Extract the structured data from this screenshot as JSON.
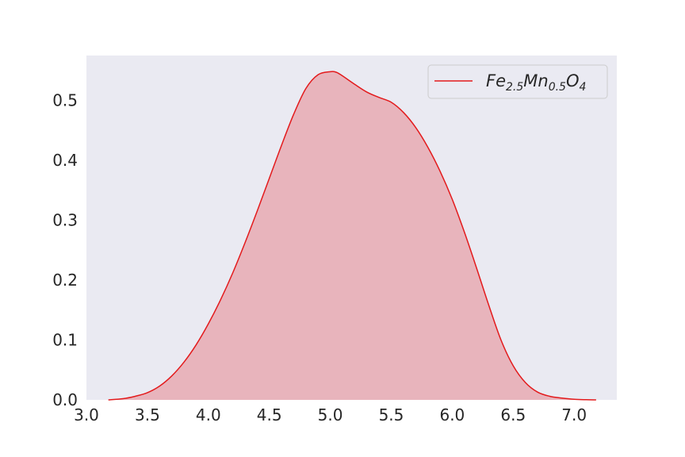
{
  "chart_data": {
    "type": "area",
    "subtype": "kde",
    "title": "",
    "xlabel": "",
    "ylabel": "",
    "xlim": [
      3.0,
      7.35
    ],
    "ylim": [
      0.0,
      0.575
    ],
    "xticks": [
      3.0,
      3.5,
      4.0,
      4.5,
      5.0,
      5.5,
      6.0,
      6.5,
      7.0
    ],
    "xtick_labels": [
      "3.0",
      "3.5",
      "4.0",
      "4.5",
      "5.0",
      "5.5",
      "6.0",
      "6.5",
      "7.0"
    ],
    "yticks": [
      0.0,
      0.1,
      0.2,
      0.3,
      0.4,
      0.5
    ],
    "ytick_labels": [
      "0.0",
      "0.1",
      "0.2",
      "0.3",
      "0.4",
      "0.5"
    ],
    "grid": false,
    "legend_position": "top-right",
    "background_color": "#eaeaf2",
    "series": [
      {
        "name_parts": [
          {
            "text": "Fe",
            "sub": false
          },
          {
            "text": "2.5",
            "sub": true
          },
          {
            "text": "Mn",
            "sub": false
          },
          {
            "text": "0.5",
            "sub": true
          },
          {
            "text": "O",
            "sub": false
          },
          {
            "text": "4",
            "sub": true
          }
        ],
        "color": "#e31a1c",
        "fill_color": "#e8b4bc",
        "x": [
          3.18,
          3.3,
          3.4,
          3.5,
          3.6,
          3.7,
          3.8,
          3.9,
          4.0,
          4.1,
          4.2,
          4.3,
          4.4,
          4.5,
          4.6,
          4.7,
          4.8,
          4.9,
          5.0,
          5.05,
          5.1,
          5.2,
          5.3,
          5.4,
          5.5,
          5.6,
          5.7,
          5.8,
          5.9,
          6.0,
          6.1,
          6.2,
          6.3,
          6.4,
          6.5,
          6.6,
          6.7,
          6.8,
          6.9,
          7.0,
          7.1,
          7.18
        ],
        "y": [
          0.0,
          0.002,
          0.006,
          0.012,
          0.023,
          0.04,
          0.063,
          0.092,
          0.127,
          0.167,
          0.212,
          0.262,
          0.315,
          0.37,
          0.425,
          0.477,
          0.52,
          0.543,
          0.548,
          0.547,
          0.541,
          0.527,
          0.514,
          0.505,
          0.497,
          0.48,
          0.455,
          0.422,
          0.382,
          0.335,
          0.28,
          0.22,
          0.158,
          0.1,
          0.057,
          0.029,
          0.013,
          0.006,
          0.003,
          0.001,
          0.0003,
          0.0
        ]
      }
    ]
  }
}
